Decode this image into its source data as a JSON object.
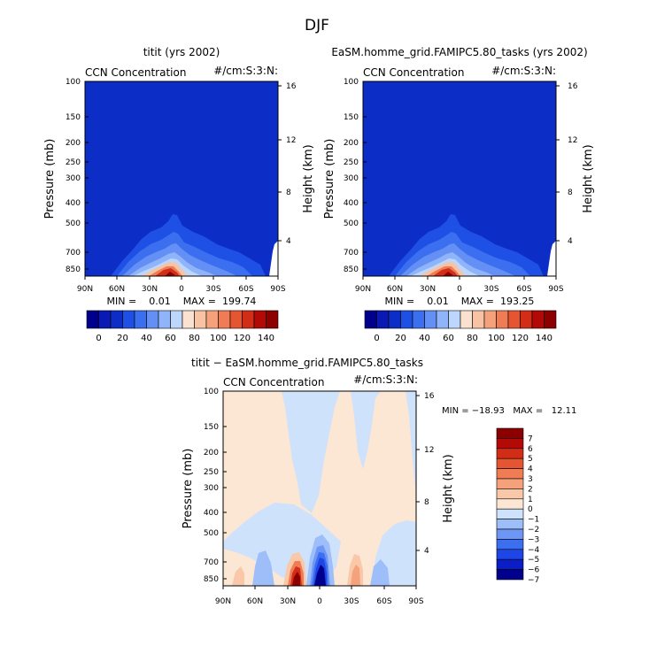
{
  "figure": {
    "title": "DJF",
    "colors": {
      "field_bg": "#0c2dc6",
      "seq": [
        "#00008c",
        "#0a18b4",
        "#0c2dc6",
        "#1e50e6",
        "#3c6ef0",
        "#6490f5",
        "#8fb4fa",
        "#bcd6fc",
        "#fbe1cf",
        "#f8c3a5",
        "#f5a27c",
        "#f07c55",
        "#e65532",
        "#d22d16",
        "#b40a07",
        "#8c0000"
      ],
      "div": [
        "#00008c",
        "#0a1ec8",
        "#1e46e6",
        "#3c6ef0",
        "#6e96f5",
        "#9ebefa",
        "#cfe2fc",
        "#fce6d4",
        "#f8c8a8",
        "#f5a27c",
        "#f07c55",
        "#e65532",
        "#d22d16",
        "#b40a07",
        "#8c0000"
      ]
    }
  },
  "chart_data": [
    {
      "type": "heatmap",
      "title": "titit (yrs 2002)",
      "subtitle_left": "CCN Concentration",
      "subtitle_right": "#/cm:S:3:N:",
      "ylabel": "Pressure (mb)",
      "ylabel_right": "Height (km)",
      "x_ticks": [
        "90N",
        "60N",
        "30N",
        "0",
        "30S",
        "60S",
        "90S"
      ],
      "y_ticks": [
        "100",
        "150",
        "200",
        "250",
        "300",
        "400",
        "500",
        "700",
        "850"
      ],
      "y_right_ticks": [
        "16",
        "12",
        "8",
        "4"
      ],
      "stats": "MIN =    0.01    MAX =  199.74",
      "colorbar_labels": [
        "0",
        "20",
        "40",
        "60",
        "80",
        "100",
        "120",
        "140"
      ],
      "levels": [
        0,
        10,
        20,
        30,
        40,
        50,
        60,
        70,
        80,
        90,
        100,
        110,
        120,
        130,
        140
      ]
    },
    {
      "type": "heatmap",
      "title": "EaSM.homme_grid.FAMIPC5.80_tasks (yrs 2002)",
      "subtitle_left": "CCN Concentration",
      "subtitle_right": "#/cm:S:3:N:",
      "ylabel": "Pressure (mb)",
      "ylabel_right": "Height (km)",
      "x_ticks": [
        "90N",
        "60N",
        "30N",
        "0",
        "30S",
        "60S",
        "90S"
      ],
      "y_ticks": [
        "100",
        "150",
        "200",
        "250",
        "300",
        "400",
        "500",
        "700",
        "850"
      ],
      "y_right_ticks": [
        "16",
        "12",
        "8",
        "4"
      ],
      "stats": "MIN =    0.01    MAX =  193.25",
      "colorbar_labels": [
        "0",
        "20",
        "40",
        "60",
        "80",
        "100",
        "120",
        "140"
      ],
      "levels": [
        0,
        10,
        20,
        30,
        40,
        50,
        60,
        70,
        80,
        90,
        100,
        110,
        120,
        130,
        140
      ]
    },
    {
      "type": "heatmap",
      "title": "titit − EaSM.homme_grid.FAMIPC5.80_tasks",
      "subtitle_left": "CCN Concentration",
      "subtitle_right": "#/cm:S:3:N:",
      "ylabel": "Pressure (mb)",
      "ylabel_right": "Height (km)",
      "x_ticks": [
        "90N",
        "60N",
        "30N",
        "0",
        "30S",
        "60S",
        "90S"
      ],
      "y_ticks": [
        "100",
        "150",
        "200",
        "250",
        "300",
        "400",
        "500",
        "700",
        "850"
      ],
      "y_right_ticks": [
        "16",
        "12",
        "8",
        "4"
      ],
      "stats": "MIN = −18.93   MAX =   12.11",
      "colorbar_labels": [
        "7",
        "6",
        "5",
        "4",
        "3",
        "2",
        "1",
        "0",
        "−1",
        "−2",
        "−3",
        "−4",
        "−5",
        "−6",
        "−7"
      ],
      "levels": [
        -7,
        -6,
        -5,
        -4,
        -3,
        -2,
        -1,
        0,
        1,
        2,
        3,
        4,
        5,
        6,
        7
      ]
    }
  ]
}
